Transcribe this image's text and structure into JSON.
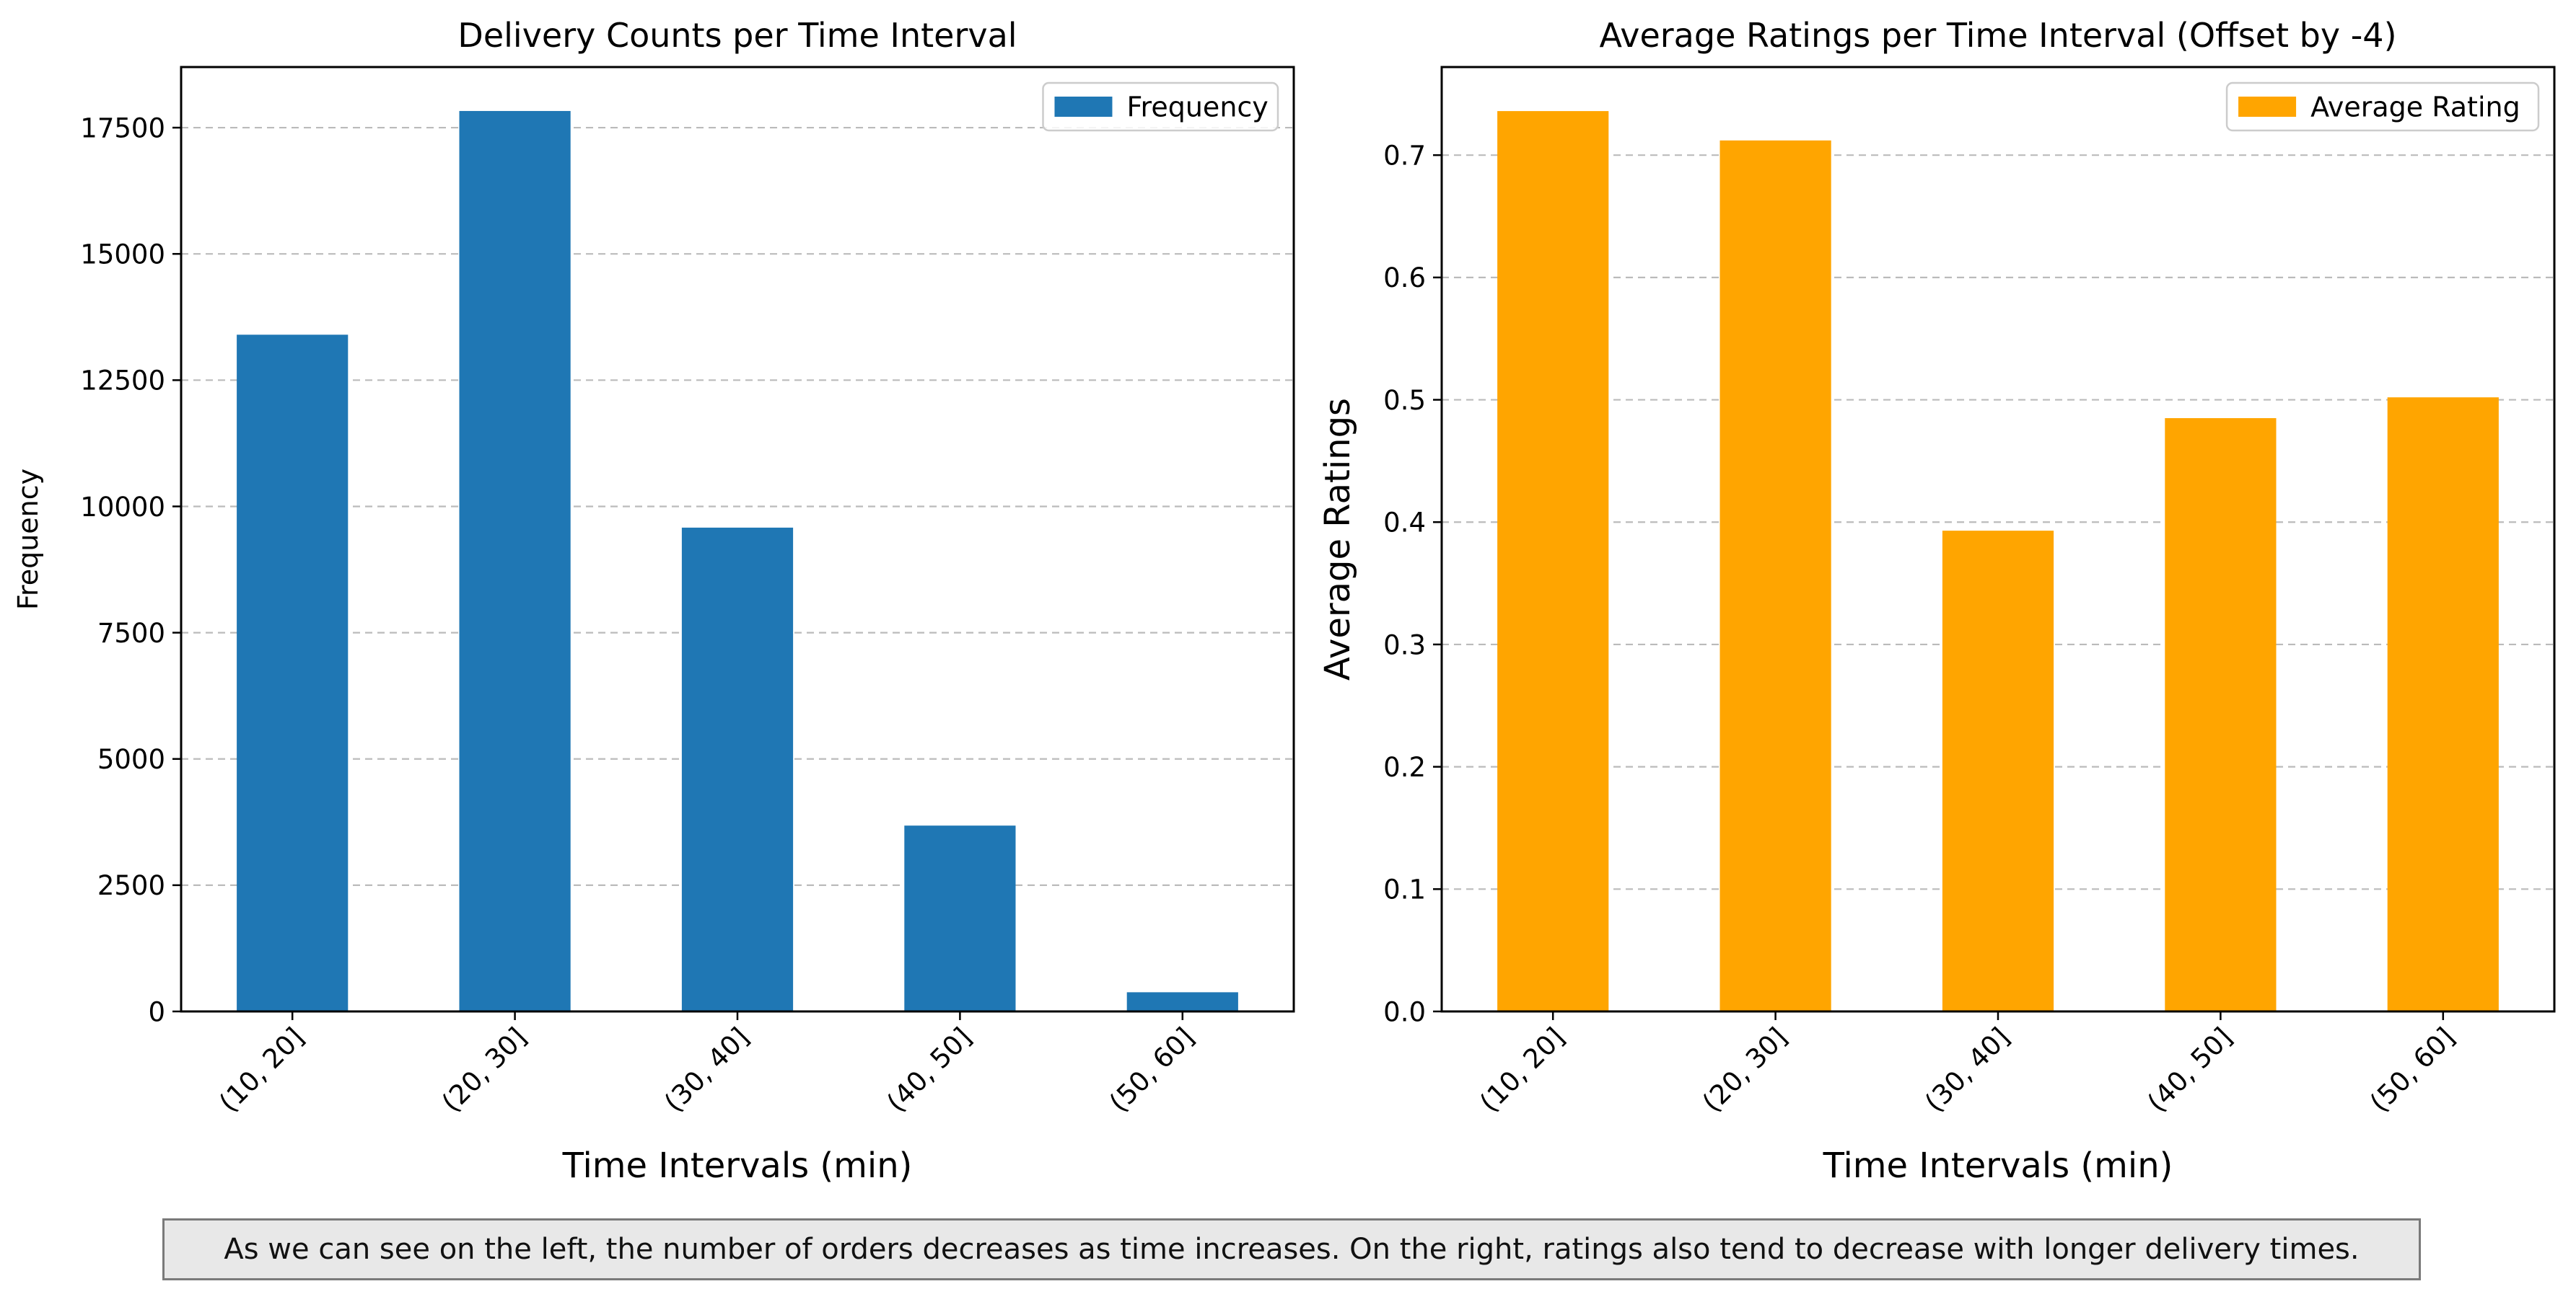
{
  "chart_data": [
    {
      "type": "bar",
      "title": "Delivery Counts per Time Interval",
      "xlabel": "Time Intervals (min)",
      "ylabel": "Frequency",
      "categories": [
        "(10, 20]",
        "(20, 30]",
        "(30, 40]",
        "(40, 50]",
        "(50, 60]"
      ],
      "series": [
        {
          "name": "Frequency",
          "color": "#1f77b4",
          "values": [
            13400,
            17830,
            9580,
            3680,
            380
          ]
        }
      ],
      "ylim": [
        0,
        18700
      ],
      "yticks": [
        0,
        2500,
        5000,
        7500,
        10000,
        12500,
        15000,
        17500
      ],
      "ytick_labels": [
        "0",
        "2500",
        "5000",
        "7500",
        "10000",
        "12500",
        "15000",
        "17500"
      ],
      "grid": "y-dashed",
      "legend": "top-right"
    },
    {
      "type": "bar",
      "title": "Average Ratings per Time Interval (Offset by -4)",
      "xlabel": "Time Intervals (min)",
      "ylabel": "Average Ratings",
      "categories": [
        "(10, 20]",
        "(20, 30]",
        "(30, 40]",
        "(40, 50]",
        "(50, 60]"
      ],
      "series": [
        {
          "name": "Average Rating",
          "color": "#ffa500",
          "values": [
            0.736,
            0.712,
            0.393,
            0.485,
            0.502
          ]
        }
      ],
      "ylim": [
        0,
        0.772
      ],
      "yticks": [
        0.0,
        0.1,
        0.2,
        0.3,
        0.4,
        0.5,
        0.6,
        0.7
      ],
      "ytick_labels": [
        "0.0",
        "0.1",
        "0.2",
        "0.3",
        "0.4",
        "0.5",
        "0.6",
        "0.7"
      ],
      "grid": "y-dashed",
      "legend": "top-right"
    }
  ],
  "caption": "As we can see on the left, the number of orders decreases as time increases. On the right, ratings also tend to decrease with longer delivery times."
}
